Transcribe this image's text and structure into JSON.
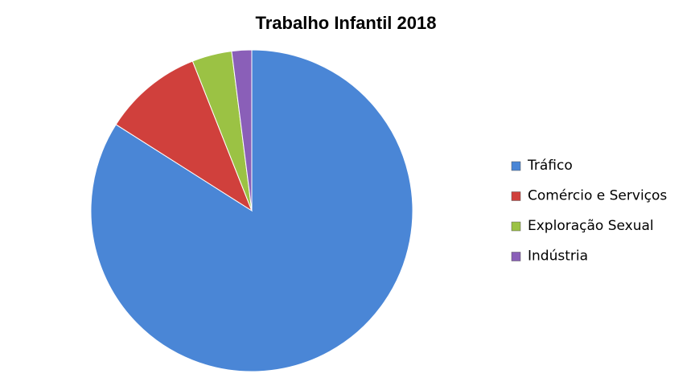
{
  "chart_data": {
    "type": "pie",
    "title": "Trabalho Infantil 2018",
    "categories": [
      "Tráfico",
      "Comércio e Serviços",
      "Exploração Sexual",
      "Indústria"
    ],
    "values": [
      84,
      10,
      4,
      2
    ],
    "colors": [
      "#4a86d6",
      "#d0403c",
      "#9bc244",
      "#8a5fb8"
    ],
    "legend": "right"
  }
}
